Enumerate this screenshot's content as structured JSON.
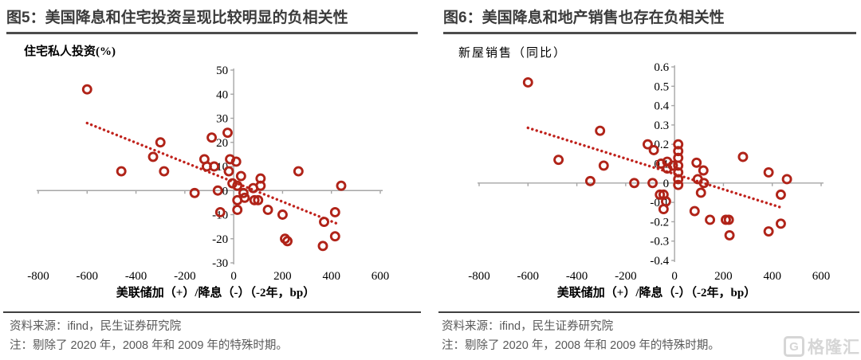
{
  "panels": [
    {
      "title": "图5：美国降息和住宅投资呈现比较明显的负相关性",
      "source": "资料来源：ifind，民生证券研究院",
      "note": "注：剔除了 2020 年，2008 年和 2009 年的特殊时期。"
    },
    {
      "title": "图6：美国降息和地产销售也存在负相关性",
      "source": "资料来源：ifind，民生证券研究院",
      "note": "注：剔除了 2020 年，2008 年和 2009 年的特殊时期。"
    }
  ],
  "chart_data": [
    {
      "type": "scatter",
      "title": "图5：美国降息和住宅投资呈现比较明显的负相关性",
      "ylabel": "住宅私人投资(%)",
      "xlabel": "美联储加（+）/降息（-）（-2年，bp）",
      "xlim": [
        -800,
        600
      ],
      "ylim": [
        -30,
        50
      ],
      "xticks": [
        "-800",
        "-600",
        "-400",
        "-200",
        "0",
        "200",
        "400",
        "600"
      ],
      "yticks": [
        "50",
        "40",
        "30",
        "20",
        "10",
        "0",
        "-10",
        "-20",
        "-30"
      ],
      "legend": "none",
      "grid": false,
      "trend": {
        "x": [
          -600,
          430
        ],
        "y": [
          28,
          -14
        ]
      },
      "points": [
        [
          -600,
          42
        ],
        [
          -460,
          8
        ],
        [
          -330,
          14
        ],
        [
          -300,
          20
        ],
        [
          -285,
          8
        ],
        [
          -160,
          -1
        ],
        [
          -120,
          13
        ],
        [
          -110,
          10
        ],
        [
          -90,
          22
        ],
        [
          -80,
          10
        ],
        [
          -65,
          0
        ],
        [
          -55,
          -9
        ],
        [
          -25,
          24
        ],
        [
          -20,
          8
        ],
        [
          -15,
          13
        ],
        [
          -5,
          3
        ],
        [
          10,
          12
        ],
        [
          15,
          2
        ],
        [
          15,
          -4
        ],
        [
          15,
          -8
        ],
        [
          30,
          6
        ],
        [
          40,
          -1
        ],
        [
          45,
          -3
        ],
        [
          80,
          1
        ],
        [
          85,
          -4
        ],
        [
          100,
          -4
        ],
        [
          110,
          5
        ],
        [
          110,
          2
        ],
        [
          140,
          -8
        ],
        [
          200,
          -10
        ],
        [
          210,
          -20
        ],
        [
          220,
          -21
        ],
        [
          265,
          8
        ],
        [
          365,
          -23
        ],
        [
          370,
          -13
        ],
        [
          415,
          -9
        ],
        [
          415,
          -19
        ],
        [
          440,
          2
        ]
      ]
    },
    {
      "type": "scatter",
      "title": "图6：美国降息和地产销售也存在负相关性",
      "ylabel": "新屋销售（同比）",
      "xlabel": "美联储加（+）/降息（-）（-2年，bp）",
      "xlim": [
        -800,
        600
      ],
      "ylim": [
        -0.4,
        0.6
      ],
      "xticks": [
        "-800",
        "-600",
        "-400",
        "-200",
        "0",
        "200",
        "400",
        "600"
      ],
      "yticks": [
        "0.6",
        "0.5",
        "0.4",
        "0.3",
        "0.2",
        "0.1",
        "0",
        "-0.1",
        "-0.2",
        "-0.3",
        "-0.4"
      ],
      "legend": "none",
      "grid": false,
      "trend": {
        "x": [
          -600,
          445
        ],
        "y": [
          0.285,
          -0.13
        ]
      },
      "points": [
        [
          -600,
          0.52
        ],
        [
          -475,
          0.12
        ],
        [
          -345,
          0.01
        ],
        [
          -305,
          0.27
        ],
        [
          -290,
          0.09
        ],
        [
          -165,
          0
        ],
        [
          -110,
          0.2
        ],
        [
          -90,
          0
        ],
        [
          -85,
          0.17
        ],
        [
          -60,
          -0.06
        ],
        [
          -55,
          0.1
        ],
        [
          -45,
          -0.06
        ],
        [
          -45,
          -0.135
        ],
        [
          -35,
          -0.095
        ],
        [
          -30,
          0.11
        ],
        [
          -30,
          0.075
        ],
        [
          -7,
          0.09
        ],
        [
          15,
          0.2
        ],
        [
          15,
          0.165
        ],
        [
          15,
          0.13
        ],
        [
          15,
          0.09
        ],
        [
          15,
          0.055
        ],
        [
          15,
          0.02
        ],
        [
          15,
          -0.01
        ],
        [
          90,
          0.105
        ],
        [
          95,
          0.02
        ],
        [
          108,
          -0.05
        ],
        [
          118,
          0.065
        ],
        [
          120,
          0
        ],
        [
          82,
          -0.145
        ],
        [
          145,
          -0.19
        ],
        [
          210,
          -0.19
        ],
        [
          222,
          -0.19
        ],
        [
          225,
          -0.27
        ],
        [
          280,
          0.135
        ],
        [
          385,
          0.055
        ],
        [
          385,
          -0.25
        ],
        [
          435,
          -0.06
        ],
        [
          435,
          -0.21
        ],
        [
          460,
          0.02
        ]
      ]
    }
  ],
  "watermark": {
    "logo_letter": "G",
    "text": "格隆汇"
  },
  "colors": {
    "marker": "#b02318",
    "trend": "#c0221c",
    "axis": "#a6a6a6",
    "title_text": "#3b3b3b",
    "note_text": "#595959",
    "watermark": "#d6d6d6"
  }
}
